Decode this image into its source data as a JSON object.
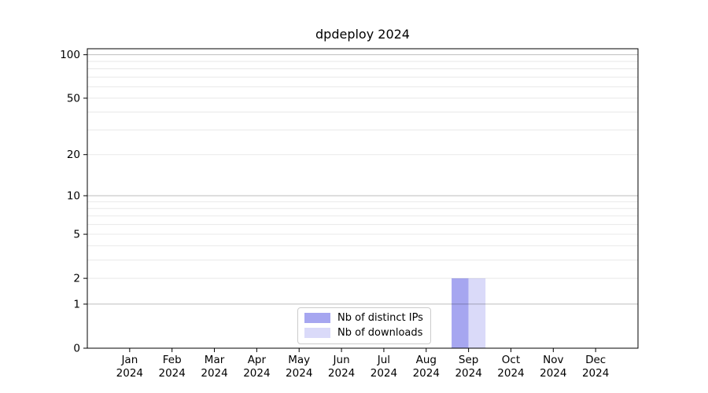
{
  "chart_data": {
    "type": "bar",
    "title": "dpdeploy 2024",
    "categories": [
      "Jan 2024",
      "Feb 2024",
      "Mar 2024",
      "Apr 2024",
      "May 2024",
      "Jun 2024",
      "Jul 2024",
      "Aug 2024",
      "Sep 2024",
      "Oct 2024",
      "Nov 2024",
      "Dec 2024"
    ],
    "series": [
      {
        "name": "Nb of distinct IPs",
        "color": "#a6a6f0",
        "values": [
          0,
          0,
          0,
          0,
          0,
          0,
          0,
          0,
          2,
          0,
          0,
          0
        ]
      },
      {
        "name": "Nb of downloads",
        "color": "#dadaf9",
        "values": [
          0,
          0,
          0,
          0,
          0,
          0,
          0,
          0,
          2,
          0,
          0,
          0
        ]
      }
    ],
    "xlabel": "",
    "ylabel": "",
    "yscale": "log1p",
    "yticks": [
      0,
      1,
      2,
      5,
      10,
      20,
      50,
      100
    ],
    "ylim": [
      0,
      110
    ],
    "grid": true,
    "grid_major_values": [
      1,
      10,
      100
    ],
    "grid_minor_values": [
      2,
      3,
      4,
      5,
      6,
      7,
      8,
      9,
      20,
      30,
      40,
      50,
      60,
      70,
      80,
      90
    ],
    "legend_position": "lower center",
    "colors": {
      "axis": "#000000",
      "tick_label": "#000000",
      "grid_major": "rgba(0,0,0,0.26)",
      "grid_minor": "rgba(0,0,0,0.09)",
      "legend_border": "#cccccc"
    }
  }
}
